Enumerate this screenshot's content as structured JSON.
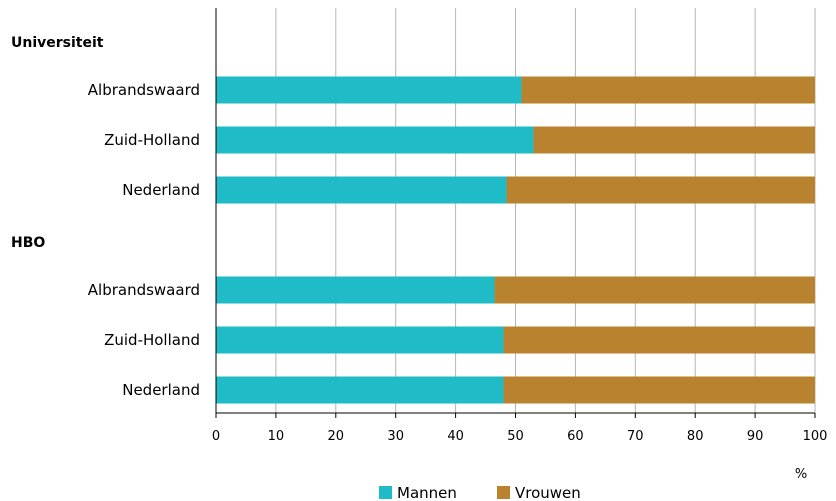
{
  "chart_data": {
    "type": "bar",
    "orientation": "horizontal",
    "stacked": true,
    "title": "",
    "xlabel": "%",
    "ylabel": "",
    "xlim": [
      0,
      100
    ],
    "xticks": [
      0,
      10,
      20,
      30,
      40,
      50,
      60,
      70,
      80,
      90,
      100
    ],
    "grid": true,
    "legend_position": "bottom",
    "colors": {
      "Mannen": "#1fbbc7",
      "Vrouwen": "#b9822f"
    },
    "groups": [
      {
        "label": "Universiteit",
        "rows": [
          {
            "label": "Albrandswaard",
            "Mannen": 51,
            "Vrouwen": 49
          },
          {
            "label": "Zuid-Holland",
            "Mannen": 53,
            "Vrouwen": 47
          },
          {
            "label": "Nederland",
            "Mannen": 48.5,
            "Vrouwen": 51.5
          }
        ]
      },
      {
        "label": "HBO",
        "rows": [
          {
            "label": "Albrandswaard",
            "Mannen": 46.5,
            "Vrouwen": 53.5
          },
          {
            "label": "Zuid-Holland",
            "Mannen": 48,
            "Vrouwen": 52
          },
          {
            "label": "Nederland",
            "Mannen": 48,
            "Vrouwen": 52
          }
        ]
      }
    ],
    "series": [
      {
        "name": "Mannen"
      },
      {
        "name": "Vrouwen"
      }
    ]
  }
}
